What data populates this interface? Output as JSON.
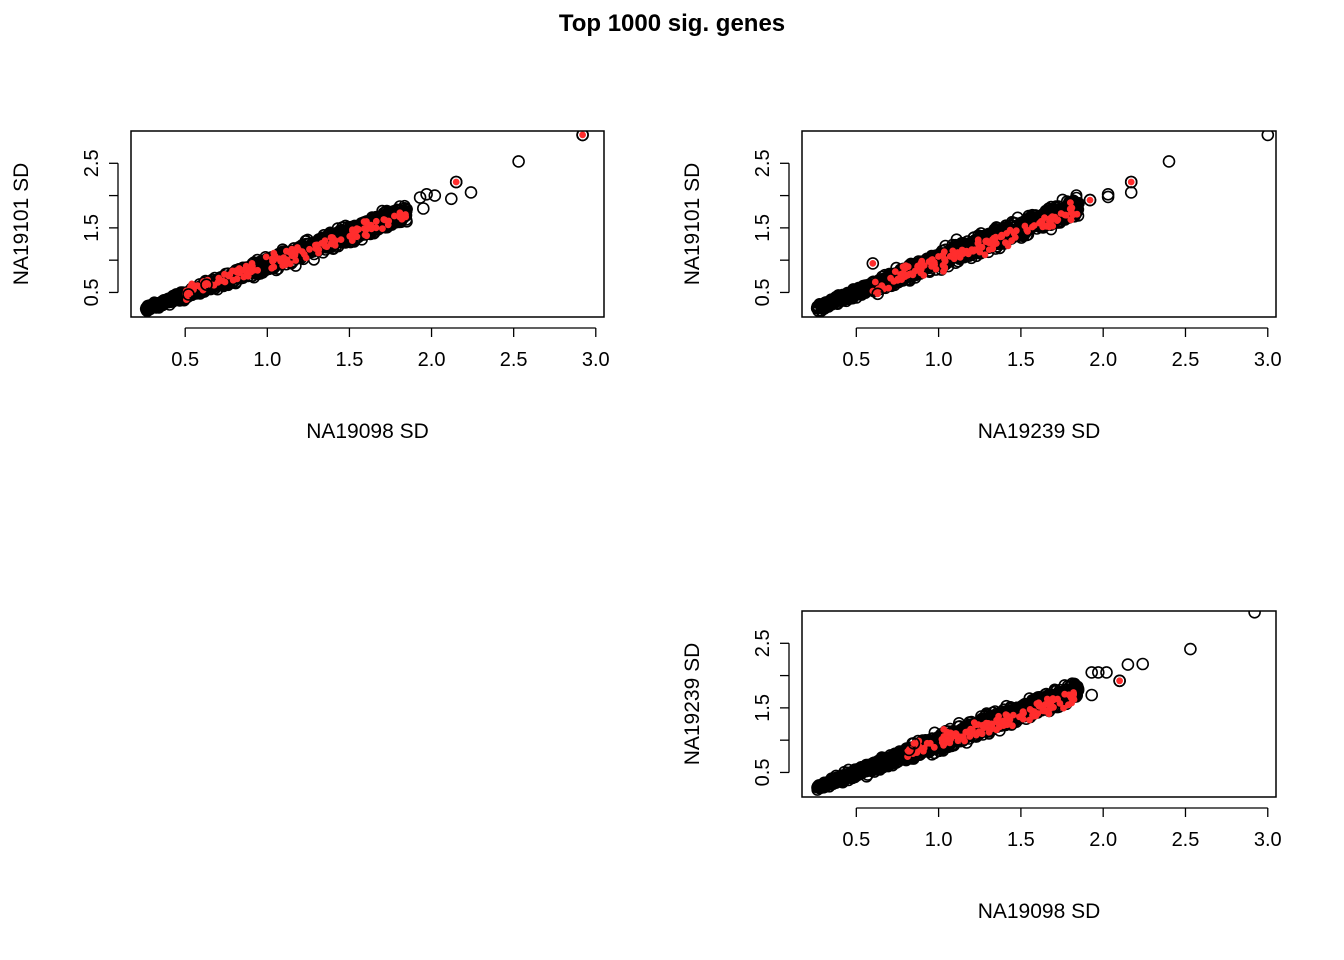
{
  "title": "Top 1000 sig. genes",
  "colors": {
    "highlight": "#FF2D2D",
    "outline": "#000000"
  },
  "chart_data": [
    {
      "type": "scatter",
      "id": "p1",
      "xlabel": "NA19098 SD",
      "ylabel": "NA19101 SD",
      "xticks": [
        "0.5",
        "1.0",
        "1.5",
        "2.0",
        "2.5",
        "3.0"
      ],
      "yticks": [
        "0.5",
        "1.5",
        "2.5"
      ],
      "xlim": [
        0.17,
        3.05
      ],
      "ylim": [
        0.12,
        3.0
      ],
      "series": [
        {
          "role": "all",
          "marker": "open-circle",
          "band": {
            "x_start": 0.26,
            "x_end": 1.85,
            "slope": 0.94,
            "intercept": 0.0,
            "halfwidth": 0.16
          },
          "outliers": [
            [
              2.92,
              2.94
            ],
            [
              2.53,
              2.53
            ],
            [
              2.24,
              2.05
            ],
            [
              2.15,
              2.21
            ],
            [
              2.12,
              1.95
            ],
            [
              2.02,
              2.0
            ],
            [
              1.97,
              2.02
            ],
            [
              1.93,
              1.97
            ],
            [
              1.95,
              1.8
            ]
          ]
        },
        {
          "role": "highlight",
          "marker": "filled-dot",
          "cloud": {
            "x_range": [
              0.5,
              1.85
            ],
            "slope": 0.9,
            "intercept": 0.05,
            "spread": 0.08,
            "n": 140
          },
          "points": [
            [
              2.92,
              2.94
            ],
            [
              2.15,
              2.21
            ],
            [
              0.52,
              0.47
            ],
            [
              0.63,
              0.62
            ]
          ]
        }
      ]
    },
    {
      "type": "scatter",
      "id": "p2",
      "xlabel": "NA19239 SD",
      "ylabel": "NA19101 SD",
      "xticks": [
        "0.5",
        "1.0",
        "1.5",
        "2.0",
        "2.5",
        "3.0"
      ],
      "yticks": [
        "0.5",
        "1.5",
        "2.5"
      ],
      "xlim": [
        0.17,
        3.05
      ],
      "ylim": [
        0.12,
        3.0
      ],
      "series": [
        {
          "role": "all",
          "marker": "open-circle",
          "band": {
            "x_start": 0.26,
            "x_end": 1.85,
            "slope": 1.0,
            "intercept": 0.0,
            "halfwidth": 0.18
          },
          "outliers": [
            [
              3.0,
              2.94
            ],
            [
              2.4,
              2.53
            ],
            [
              2.17,
              2.21
            ],
            [
              2.17,
              2.05
            ],
            [
              2.03,
              1.98
            ],
            [
              2.03,
              2.02
            ],
            [
              1.92,
              1.93
            ],
            [
              1.85,
              1.88
            ]
          ]
        },
        {
          "role": "highlight",
          "marker": "filled-dot",
          "cloud": {
            "x_range": [
              0.6,
              1.85
            ],
            "slope": 0.95,
            "intercept": 0.02,
            "spread": 0.09,
            "n": 140
          },
          "points": [
            [
              2.17,
              2.21
            ],
            [
              0.6,
              0.95
            ],
            [
              0.63,
              0.48
            ],
            [
              1.92,
              1.93
            ]
          ]
        }
      ]
    },
    {
      "type": "scatter",
      "id": "p3",
      "xlabel": "NA19098 SD",
      "ylabel": "NA19239 SD",
      "xticks": [
        "0.5",
        "1.0",
        "1.5",
        "2.0",
        "2.5",
        "3.0"
      ],
      "yticks": [
        "0.5",
        "1.5",
        "2.5"
      ],
      "xlim": [
        0.17,
        3.05
      ],
      "ylim": [
        0.12,
        3.0
      ],
      "series": [
        {
          "role": "all",
          "marker": "open-circle",
          "band": {
            "x_start": 0.26,
            "x_end": 1.85,
            "slope": 0.95,
            "intercept": 0.02,
            "halfwidth": 0.17
          },
          "outliers": [
            [
              2.92,
              2.98
            ],
            [
              2.53,
              2.41
            ],
            [
              2.24,
              2.18
            ],
            [
              2.15,
              2.17
            ],
            [
              2.1,
              1.92
            ],
            [
              2.02,
              2.05
            ],
            [
              1.97,
              2.05
            ],
            [
              1.93,
              2.05
            ],
            [
              1.93,
              1.7
            ]
          ]
        },
        {
          "role": "highlight",
          "marker": "filled-dot",
          "cloud": {
            "x_range": [
              0.8,
              1.85
            ],
            "slope": 0.85,
            "intercept": 0.12,
            "spread": 0.09,
            "n": 140
          },
          "points": [
            [
              2.1,
              1.92
            ],
            [
              0.82,
              0.85
            ],
            [
              0.85,
              0.95
            ]
          ]
        }
      ]
    }
  ]
}
